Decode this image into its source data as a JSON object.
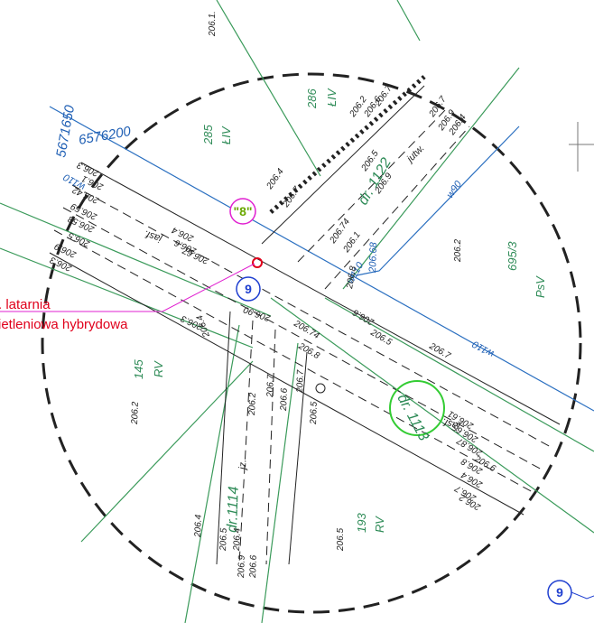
{
  "parcels": [
    {
      "number": "286",
      "class": "ŁIV"
    },
    {
      "number": "285",
      "class": "ŁIV"
    },
    {
      "number": "695/3",
      "class": "PsV"
    },
    {
      "number": "145",
      "class": "RV"
    },
    {
      "number": "193",
      "class": "RV"
    }
  ],
  "coordinates": [
    "5671650",
    "6576200"
  ],
  "roads": [
    "dr. 1122",
    "dr.1114",
    "dr. 1113"
  ],
  "surfaces": [
    "jutw.",
    "jasf.",
    "jz.",
    "jasf."
  ],
  "pipes": [
    "w110",
    "w90",
    "w110",
    "w110"
  ],
  "pipe_level": "206.68",
  "markers": {
    "pole_label": "\"8\"",
    "callout": "9",
    "callout_2": "9"
  },
  "legend": {
    "line1": ". latarnia",
    "line2": "ietleniowa hybrydowa"
  },
  "elevations": [
    "206.1.",
    "206.2",
    "206.6",
    "206.7",
    "206.7",
    "206.9",
    "206.4",
    "206.4",
    "206.7",
    "206.5",
    "206.9",
    "206.74",
    "206.1",
    "206.8",
    "206.3",
    "206.1",
    "206.42",
    "206.59",
    "206.58",
    "206.5",
    "206.9",
    "206.3",
    "206.6",
    "206.4",
    "206.67",
    "206.3",
    "206.4",
    "206.90",
    "206.8",
    "206.74",
    "206.5",
    "206.6",
    "206.2",
    "206.7",
    "206.2",
    "206.7",
    "206.6",
    "206.5",
    "206.4",
    "206.9",
    "206.6",
    "206.4",
    "206.5",
    "206.7",
    "206.6",
    "206.61",
    "206.65",
    "206.87",
    "206.8",
    "206.4",
    "206.7",
    "206.2",
    "206.2",
    "206.5"
  ]
}
